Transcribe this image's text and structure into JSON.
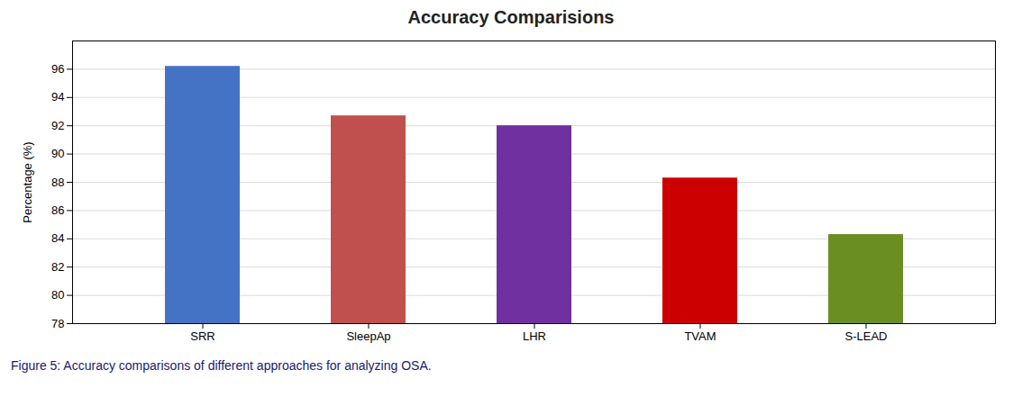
{
  "chart_data": {
    "type": "bar",
    "title": "Accuracy Comparisions",
    "categories": [
      "SRR",
      "SleepAp",
      "LHR",
      "TVAM",
      "S-LEAD"
    ],
    "values": [
      96.2,
      92.7,
      92.0,
      88.3,
      84.3
    ],
    "colors": [
      "#4472c4",
      "#c0504d",
      "#7030a0",
      "#cc0000",
      "#6b8e23"
    ],
    "ylabel": "Percentage (%)",
    "ylim": [
      78,
      98
    ],
    "yticks": [
      78,
      80,
      82,
      84,
      86,
      88,
      90,
      92,
      94,
      96
    ],
    "grid": true,
    "caption": "Figure 5: Accuracy comparisons of different approaches for analyzing OSA."
  }
}
